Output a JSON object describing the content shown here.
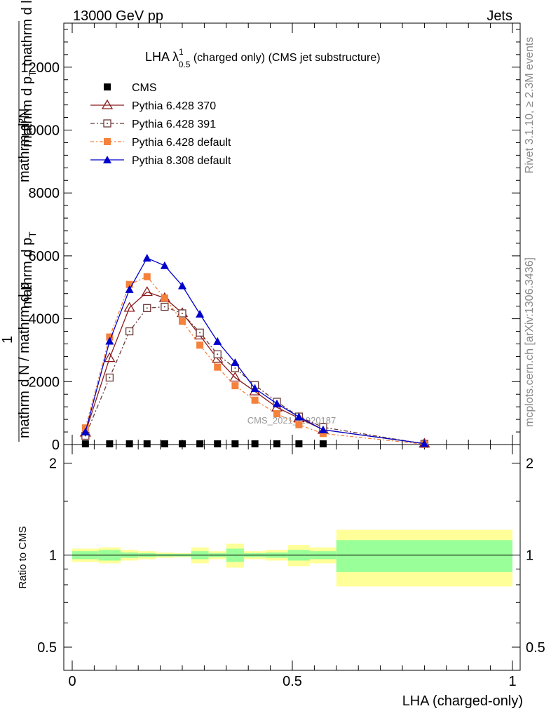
{
  "header": {
    "left": "13000 GeV pp",
    "right": "Jets"
  },
  "title": {
    "main": "LHA λ",
    "sup": "1",
    "sub": "0.5",
    "rest": " (charged only) (CMS jet substructure)"
  },
  "side_labels": {
    "rivet": "Rivet 3.1.10, ≥ 2.3M events",
    "mcplots": "mcplots.cern.ch [arXiv:1306.3436]"
  },
  "watermark": "CMS_2021_I1920187",
  "ylabel_main": {
    "line1": "mathrm d²N",
    "line1b": "mathrm d p",
    "line1b_sub": "T",
    "line1c": " mathrm d lambda",
    "one": "1",
    "den": "mathrm d N / mathrm d p",
    "den2": "mathrm d p",
    "den_sub": "T"
  },
  "ylabel_ratio": "Ratio to CMS",
  "xlabel": "LHA (charged-only)",
  "colors": {
    "cms": "#000000",
    "p370": "#8b1a1a",
    "p391": "#6b3a3a",
    "pdef": "#f5813b",
    "p8": "#0000cc",
    "band_inner": "#99ff99",
    "band_outer": "#ffff99"
  },
  "chart_data": {
    "type": "line",
    "xlabel": "LHA (charged-only)",
    "main": {
      "xlim": [
        0,
        1
      ],
      "ylim": [
        0,
        13400
      ],
      "yticks": [
        0,
        2000,
        4000,
        6000,
        8000,
        10000,
        12000
      ],
      "ytick_labels": [
        "0",
        "2000",
        "4000",
        "6000",
        "8000",
        "10000",
        "12000"
      ]
    },
    "ratio": {
      "ylim": [
        0.42,
        2.3
      ],
      "log": true,
      "yticks": [
        0.5,
        1,
        2
      ],
      "ytick_labels": [
        "0.5",
        "1",
        "2"
      ],
      "xticks": [
        0,
        0.5,
        1
      ],
      "xtick_labels": [
        "0",
        "0.5",
        "1"
      ]
    },
    "series": [
      {
        "name": "CMS",
        "key": "cms",
        "marker": "square-filled",
        "x": [
          0.03,
          0.085,
          0.13,
          0.17,
          0.21,
          0.25,
          0.29,
          0.33,
          0.37,
          0.415,
          0.465,
          0.515,
          0.57
        ],
        "y": [
          0,
          0,
          0,
          0,
          0,
          0,
          0,
          0,
          0,
          0,
          0,
          0,
          0
        ]
      },
      {
        "name": "Pythia 6.428 370",
        "key": "p370",
        "marker": "triangle-open",
        "dash": "",
        "x": [
          0.03,
          0.085,
          0.13,
          0.17,
          0.21,
          0.25,
          0.29,
          0.33,
          0.37,
          0.415,
          0.465,
          0.515,
          0.57,
          0.8
        ],
        "y": [
          380,
          2750,
          4350,
          4850,
          4660,
          4180,
          3470,
          2730,
          2130,
          1690,
          1180,
          840,
          470,
          30
        ]
      },
      {
        "name": "Pythia 6.428 391",
        "key": "p391",
        "marker": "square-open",
        "dash": "6,3,2,3",
        "x": [
          0.03,
          0.085,
          0.13,
          0.17,
          0.21,
          0.25,
          0.29,
          0.33,
          0.37,
          0.415,
          0.465,
          0.515,
          0.57,
          0.8
        ],
        "y": [
          280,
          2130,
          3600,
          4340,
          4380,
          4170,
          3560,
          2870,
          2430,
          1890,
          1360,
          890,
          550,
          20
        ]
      },
      {
        "name": "Pythia 6.428 default",
        "key": "pdef",
        "marker": "square-filled",
        "dash": "5,3,2,3",
        "x": [
          0.03,
          0.085,
          0.13,
          0.17,
          0.21,
          0.25,
          0.29,
          0.33,
          0.37,
          0.415,
          0.465,
          0.515,
          0.57,
          0.8
        ],
        "y": [
          530,
          3420,
          5090,
          5340,
          4660,
          3920,
          3160,
          2460,
          1870,
          1410,
          980,
          630,
          350,
          10
        ]
      },
      {
        "name": "Pythia 8.308 default",
        "key": "p8",
        "marker": "triangle-filled",
        "dash": "",
        "x": [
          0.03,
          0.085,
          0.13,
          0.17,
          0.21,
          0.25,
          0.29,
          0.33,
          0.37,
          0.415,
          0.465,
          0.515,
          0.57,
          0.8
        ],
        "y": [
          400,
          3290,
          4930,
          5930,
          5690,
          5050,
          4150,
          3280,
          2610,
          1780,
          1300,
          880,
          470,
          30
        ]
      }
    ],
    "ratio_bands": [
      {
        "x0": 0.0,
        "x1": 0.06,
        "inner": 0.03,
        "outer": 0.05
      },
      {
        "x0": 0.06,
        "x1": 0.11,
        "inner": 0.04,
        "outer": 0.06
      },
      {
        "x0": 0.11,
        "x1": 0.15,
        "inner": 0.02,
        "outer": 0.04
      },
      {
        "x0": 0.15,
        "x1": 0.19,
        "inner": 0.015,
        "outer": 0.03
      },
      {
        "x0": 0.19,
        "x1": 0.23,
        "inner": 0.01,
        "outer": 0.02
      },
      {
        "x0": 0.23,
        "x1": 0.27,
        "inner": 0.01,
        "outer": 0.015
      },
      {
        "x0": 0.27,
        "x1": 0.31,
        "inner": 0.03,
        "outer": 0.06
      },
      {
        "x0": 0.31,
        "x1": 0.35,
        "inner": 0.015,
        "outer": 0.03
      },
      {
        "x0": 0.35,
        "x1": 0.39,
        "inner": 0.05,
        "outer": 0.09
      },
      {
        "x0": 0.39,
        "x1": 0.44,
        "inner": 0.015,
        "outer": 0.03
      },
      {
        "x0": 0.44,
        "x1": 0.49,
        "inner": 0.02,
        "outer": 0.04
      },
      {
        "x0": 0.49,
        "x1": 0.54,
        "inner": 0.04,
        "outer": 0.08
      },
      {
        "x0": 0.54,
        "x1": 0.6,
        "inner": 0.03,
        "outer": 0.06
      },
      {
        "x0": 0.6,
        "x1": 1.0,
        "inner": 0.12,
        "outer": 0.21
      }
    ]
  }
}
